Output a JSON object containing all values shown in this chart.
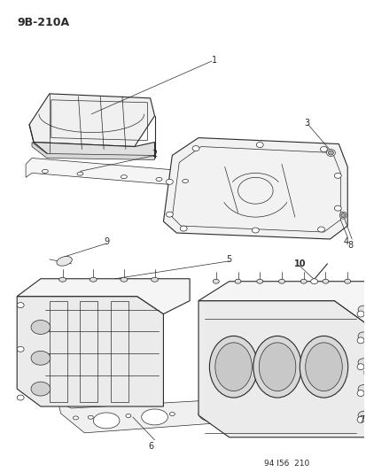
{
  "title": "9B-210A",
  "footer": "94 I56  210",
  "bg_color": "#ffffff",
  "line_color": "#2a2a2a",
  "title_fontsize": 9,
  "footer_fontsize": 6.5,
  "label_fontsize": 7,
  "lw_thin": 0.5,
  "lw_med": 0.8,
  "lw_thick": 1.2
}
